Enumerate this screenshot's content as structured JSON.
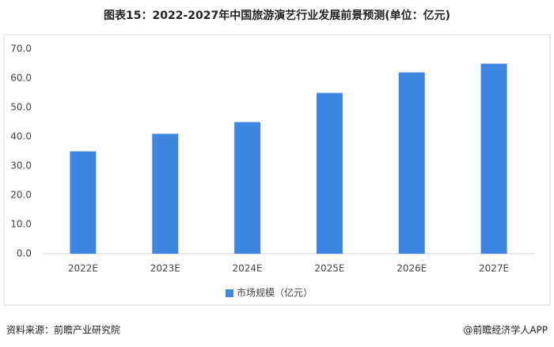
{
  "chart_data": {
    "type": "bar",
    "title": "图表15：2022-2027年中国旅游演艺行业发展前景预测(单位：亿元)",
    "categories": [
      "2022E",
      "2023E",
      "2024E",
      "2025E",
      "2026E",
      "2027E"
    ],
    "series": [
      {
        "name": "市场规模（亿元）",
        "color": "#3f86e0",
        "values": [
          35,
          41,
          45,
          55,
          62,
          65
        ]
      }
    ],
    "ylim": [
      0,
      70
    ],
    "yticks": [
      {
        "value": 0,
        "label": "0.0"
      },
      {
        "value": 10,
        "label": "10.0"
      },
      {
        "value": 20,
        "label": "20.0"
      },
      {
        "value": 30,
        "label": "30.0"
      },
      {
        "value": 40,
        "label": "40.0"
      },
      {
        "value": 50,
        "label": "50.0"
      },
      {
        "value": 60,
        "label": "60.0"
      },
      {
        "value": 70,
        "label": "70.0"
      }
    ],
    "grid": false,
    "legend": "bottom"
  },
  "footer": {
    "source": "资料来源：前瞻产业研究院",
    "credit": "@前瞻经济学人APP"
  }
}
